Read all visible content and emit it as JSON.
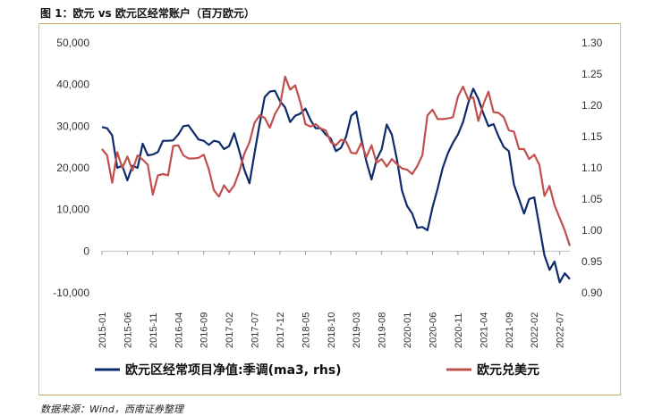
{
  "title": "图 1：欧元 vs 欧元区经常账户（百万欧元）",
  "source": "数据来源：Wind，西南证券整理",
  "colors": {
    "navy": "#0d2b6b",
    "red": "#c0504d"
  },
  "chart_data": {
    "type": "line",
    "x": [
      "2015-01",
      "2015-02",
      "2015-03",
      "2015-04",
      "2015-05",
      "2015-06",
      "2015-07",
      "2015-08",
      "2015-09",
      "2015-10",
      "2015-11",
      "2015-12",
      "2016-01",
      "2016-02",
      "2016-03",
      "2016-04",
      "2016-05",
      "2016-06",
      "2016-07",
      "2016-08",
      "2016-09",
      "2016-10",
      "2016-11",
      "2016-12",
      "2017-01",
      "2017-02",
      "2017-03",
      "2017-04",
      "2017-05",
      "2017-06",
      "2017-07",
      "2017-08",
      "2017-09",
      "2017-10",
      "2017-11",
      "2017-12",
      "2018-01",
      "2018-02",
      "2018-03",
      "2018-04",
      "2018-05",
      "2018-06",
      "2018-07",
      "2018-08",
      "2018-09",
      "2018-10",
      "2018-11",
      "2018-12",
      "2019-01",
      "2019-02",
      "2019-03",
      "2019-04",
      "2019-05",
      "2019-06",
      "2019-07",
      "2019-08",
      "2019-09",
      "2019-10",
      "2019-11",
      "2019-12",
      "2020-01",
      "2020-02",
      "2020-03",
      "2020-04",
      "2020-05",
      "2020-06",
      "2020-07",
      "2020-08",
      "2020-09",
      "2020-10",
      "2020-11",
      "2020-12",
      "2021-01",
      "2021-02",
      "2021-03",
      "2021-04",
      "2021-05",
      "2021-06",
      "2021-07",
      "2021-08",
      "2021-09",
      "2021-10",
      "2021-11",
      "2021-12",
      "2022-01",
      "2022-02",
      "2022-03",
      "2022-04",
      "2022-05",
      "2022-06",
      "2022-07",
      "2022-08",
      "2022-09"
    ],
    "x_tick_labels": [
      "2015-01",
      "2015-06",
      "2015-11",
      "2016-04",
      "2016-09",
      "2017-02",
      "2017-07",
      "2017-12",
      "2018-05",
      "2018-10",
      "2019-03",
      "2019-08",
      "2020-01",
      "2020-06",
      "2020-11",
      "2021-04",
      "2021-09",
      "2022-02",
      "2022-07"
    ],
    "series": [
      {
        "name": "欧元区经常项目净值:季调(ma3, rhs)",
        "axis": "left",
        "color": "#0d2b6b",
        "values": [
          29800,
          29500,
          27800,
          20000,
          20500,
          17000,
          20500,
          20000,
          25800,
          23000,
          23200,
          23800,
          26500,
          26500,
          26600,
          28000,
          30000,
          30200,
          28500,
          26800,
          26500,
          25500,
          26500,
          26200,
          24500,
          25200,
          28300,
          24000,
          19500,
          16300,
          23500,
          30500,
          37000,
          38300,
          38500,
          36000,
          34500,
          31000,
          32500,
          33000,
          34200,
          31500,
          29500,
          29500,
          28000,
          27000,
          24000,
          24800,
          27500,
          32500,
          33500,
          27000,
          21500,
          17200,
          22000,
          24500,
          30400,
          28000,
          22000,
          14500,
          10800,
          9000,
          5600,
          5800,
          5000,
          10500,
          15000,
          20000,
          23500,
          26000,
          28000,
          31000,
          35500,
          39000,
          36500,
          33000,
          30000,
          30500,
          27500,
          25000,
          24000,
          16000,
          12500,
          9000,
          12500,
          12900,
          6000,
          -1000,
          -4500,
          -2500,
          -7500,
          -5300,
          -6700
        ]
      },
      {
        "name": "欧元兑美元",
        "axis": "right",
        "color": "#c0504d",
        "values": [
          1.13,
          1.12,
          1.076,
          1.125,
          1.1,
          1.118,
          1.096,
          1.12,
          1.113,
          1.105,
          1.057,
          1.088,
          1.09,
          1.088,
          1.135,
          1.136,
          1.12,
          1.115,
          1.115,
          1.116,
          1.121,
          1.098,
          1.064,
          1.054,
          1.072,
          1.061,
          1.072,
          1.094,
          1.123,
          1.141,
          1.172,
          1.184,
          1.18,
          1.164,
          1.186,
          1.2,
          1.246,
          1.225,
          1.232,
          1.205,
          1.17,
          1.166,
          1.17,
          1.163,
          1.16,
          1.141,
          1.136,
          1.145,
          1.142,
          1.124,
          1.123,
          1.14,
          1.117,
          1.136,
          1.108,
          1.114,
          1.102,
          1.114,
          1.106,
          1.099,
          1.097,
          1.09,
          1.103,
          1.12,
          1.184,
          1.193,
          1.178,
          1.178,
          1.179,
          1.181,
          1.214,
          1.23,
          1.21,
          1.213,
          1.175,
          1.202,
          1.222,
          1.189,
          1.188,
          1.181,
          1.16,
          1.158,
          1.13,
          1.13,
          1.114,
          1.121,
          1.105,
          1.055,
          1.071,
          1.04,
          1.02,
          1.0,
          0.975
        ]
      }
    ],
    "y_left": {
      "ticks": [
        "50,000",
        "40,000",
        "30,000",
        "20,000",
        "10,000",
        "0",
        "-10,000"
      ],
      "range": [
        -10000,
        50000
      ]
    },
    "y_right": {
      "ticks": [
        "1.30",
        "1.25",
        "1.20",
        "1.15",
        "1.10",
        "1.05",
        "1.00",
        "0.95",
        "0.90"
      ],
      "range": [
        0.9,
        1.3
      ]
    },
    "grid": false,
    "legend_position": "bottom"
  }
}
